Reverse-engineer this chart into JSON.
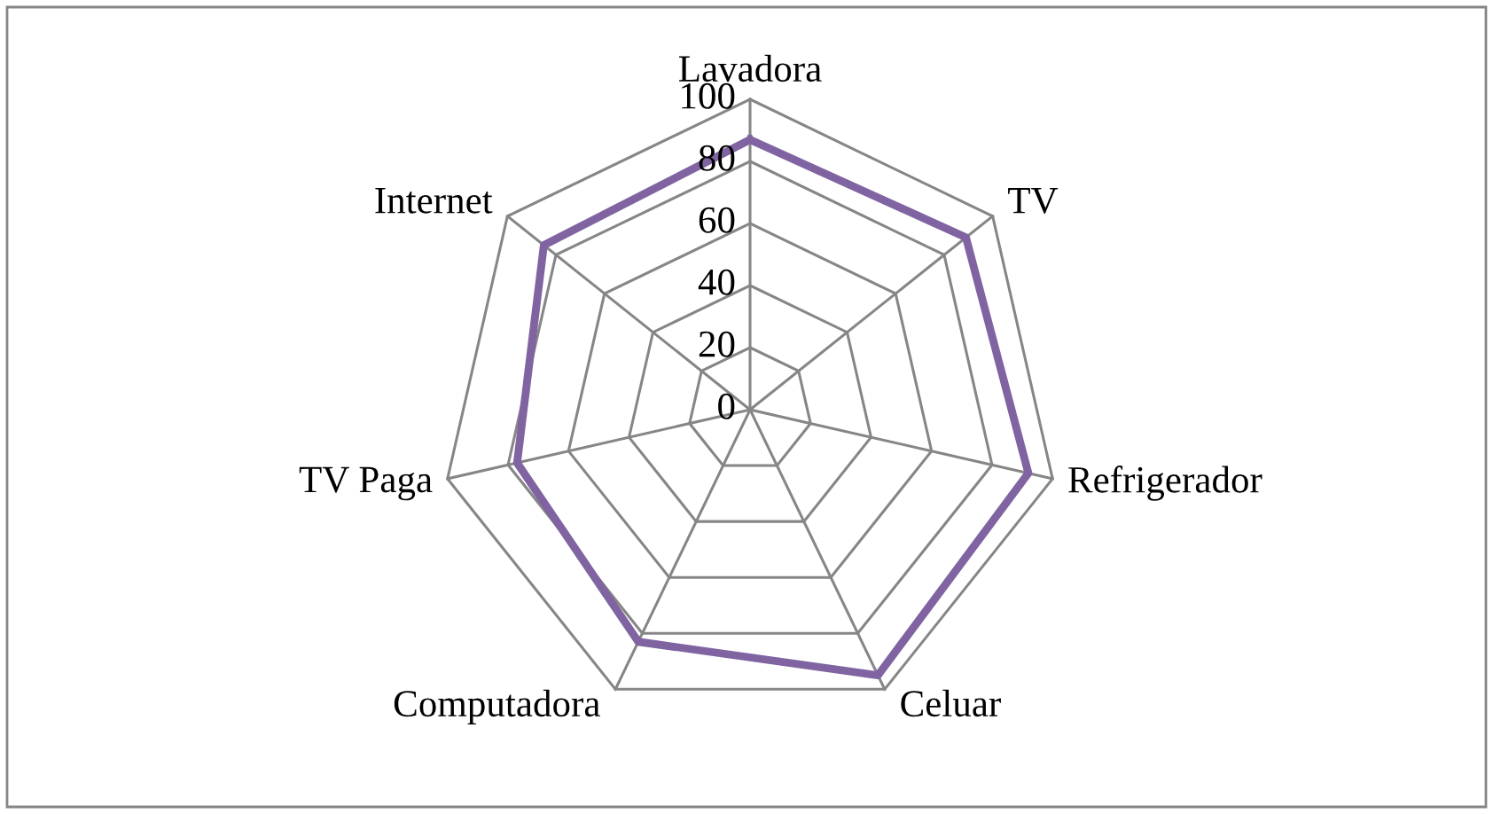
{
  "chart_data": {
    "type": "radar",
    "categories": [
      "Lavadora",
      "TV",
      "Refrigerador",
      "Celuar",
      "Computadora",
      "TV Paga",
      "Internet"
    ],
    "series": [
      {
        "color": "#8064a2",
        "values": [
          87,
          89,
          92,
          95,
          83,
          77,
          85
        ]
      }
    ],
    "ylim": [
      0,
      100
    ],
    "yticks": [
      0,
      20,
      40,
      60,
      80,
      100
    ],
    "grid": true
  }
}
